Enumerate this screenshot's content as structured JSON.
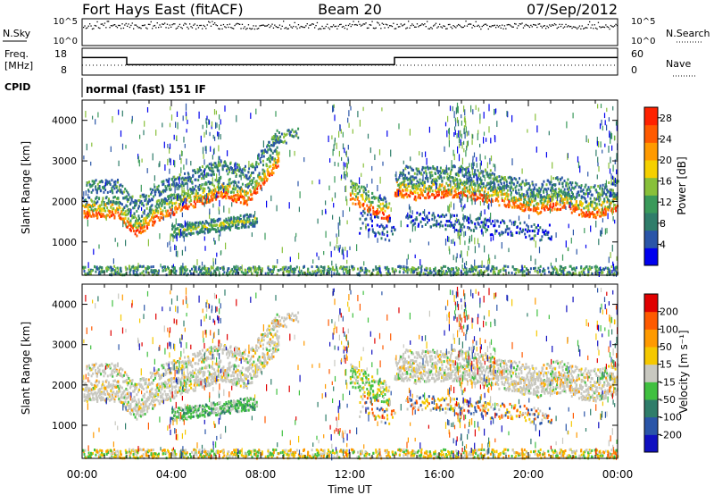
{
  "header": {
    "title": "Fort Hays East (fitACF)",
    "beam": "Beam 20",
    "date": "07/Sep/2012"
  },
  "panels": {
    "nsky": {
      "left_label": "N.Sky",
      "right_label": "N.Search",
      "ticks_left": [
        "10^5",
        "10^0"
      ],
      "ticks_right": [
        "10^5",
        "10^0"
      ]
    },
    "freq": {
      "left_label_1": "Freq.",
      "left_label_2": "[MHz]",
      "right_label": "Nave",
      "ticks_left": [
        "18",
        "8"
      ],
      "ticks_right": [
        "60",
        "0"
      ]
    },
    "cpid": {
      "label": "CPID",
      "text": "normal (fast) 151 IF"
    }
  },
  "colors": {
    "power": [
      "#0000ee",
      "#2a55a8",
      "#2f7d6a",
      "#3a9a5a",
      "#88c03a",
      "#f5d000",
      "#ff9a00",
      "#ff5a00",
      "#ff2200"
    ],
    "velocity": [
      "#e00000",
      "#ff5a00",
      "#ff9a00",
      "#f5c800",
      "#c8c8c0",
      "#40c040",
      "#2f7d6a",
      "#2a55a8",
      "#1010c0"
    ]
  },
  "chart_data": [
    {
      "type": "heatmap",
      "name": "power",
      "xlabel": "",
      "ylabel": "Slant Range [km]",
      "ylim": [
        180,
        4500
      ],
      "xlim": [
        0,
        24
      ],
      "yticks": [
        "1000",
        "2000",
        "3000",
        "4000"
      ],
      "colorbar": {
        "label": "Power [dB]",
        "ticks": [
          "4",
          "8",
          "12",
          "16",
          "20",
          "24",
          "28"
        ],
        "range": [
          0,
          30
        ]
      }
    },
    {
      "type": "heatmap",
      "name": "velocity",
      "xlabel": "Time UT",
      "ylabel": "Slant Range [km]",
      "ylim": [
        180,
        4500
      ],
      "xlim": [
        0,
        24
      ],
      "xticks": [
        "00:00",
        "04:00",
        "08:00",
        "12:00",
        "16:00",
        "20:00",
        "00:00"
      ],
      "yticks": [
        "1000",
        "2000",
        "3000",
        "4000"
      ],
      "colorbar": {
        "label": "Velocity [m s⁻¹]",
        "ticks": [
          "200",
          "100",
          "50",
          "15",
          "-15",
          "-50",
          "-100",
          "-200"
        ],
        "range": [
          -250,
          250
        ]
      }
    },
    {
      "type": "line",
      "name": "freq",
      "ylim": [
        5,
        20
      ],
      "x": [
        0,
        2,
        2,
        14,
        14,
        24
      ],
      "y": [
        14.8,
        14.8,
        10.8,
        10.8,
        14.8,
        14.8
      ]
    }
  ]
}
